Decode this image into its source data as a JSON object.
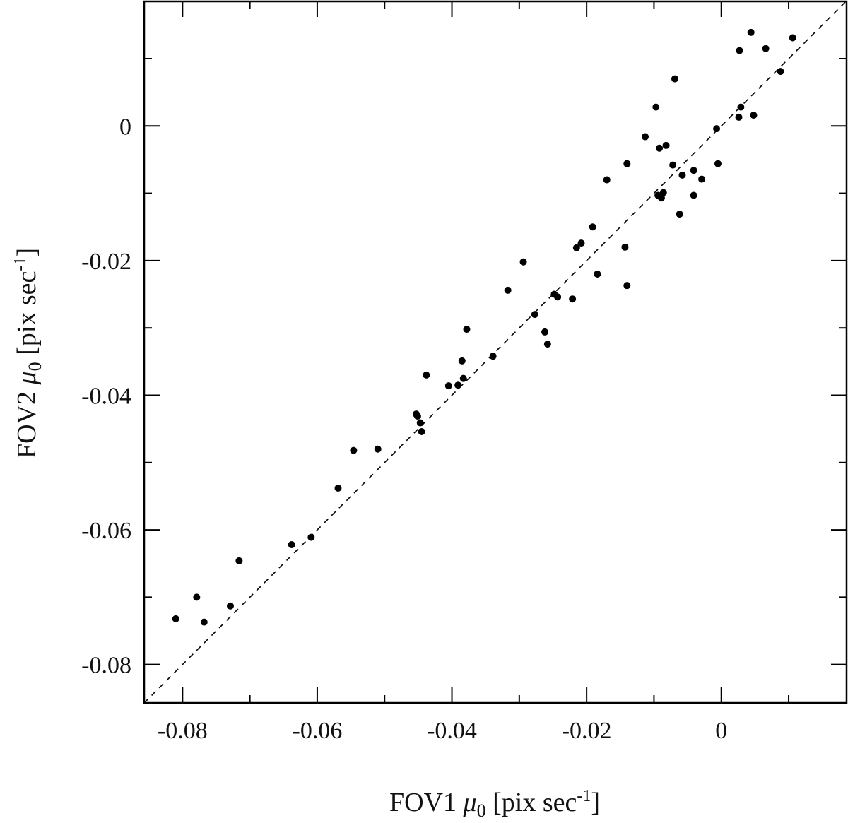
{
  "chart_data": {
    "type": "scatter",
    "title": "",
    "xlabel": {
      "prefix": "FOV1 ",
      "symbol": "μ",
      "sub": "0",
      "unit": " [pix sec",
      "exp": "-1",
      "close": "]"
    },
    "ylabel": {
      "prefix": "FOV2 ",
      "symbol": "μ",
      "sub": "0",
      "unit": " [pix sec",
      "exp": "-1",
      "close": "]"
    },
    "xlim": [
      -0.0857,
      0.0186
    ],
    "ylim": [
      -0.0857,
      0.0185
    ],
    "xticks": [
      -0.08,
      -0.06,
      -0.04,
      -0.02,
      0
    ],
    "yticks": [
      -0.08,
      -0.06,
      -0.04,
      -0.02,
      0
    ],
    "xtick_labels": [
      "-0.08",
      "-0.06",
      "-0.04",
      "-0.02",
      "0"
    ],
    "ytick_labels": [
      "-0.08",
      "-0.06",
      "-0.04",
      "-0.02",
      "0"
    ],
    "minor_tick_step": 0.01,
    "grid": false,
    "reference_line": {
      "type": "y=x",
      "style": "dashed"
    },
    "marker_color": "#000000",
    "points": [
      [
        -0.081,
        -0.0732
      ],
      [
        -0.0779,
        -0.07
      ],
      [
        -0.0768,
        -0.0737
      ],
      [
        -0.0729,
        -0.0713
      ],
      [
        -0.0716,
        -0.0646
      ],
      [
        -0.0638,
        -0.0622
      ],
      [
        -0.0609,
        -0.0611
      ],
      [
        -0.0569,
        -0.0538
      ],
      [
        -0.0546,
        -0.0482
      ],
      [
        -0.051,
        -0.048
      ],
      [
        -0.0453,
        -0.0428
      ],
      [
        -0.0451,
        -0.0431
      ],
      [
        -0.0447,
        -0.0441
      ],
      [
        -0.0445,
        -0.0454
      ],
      [
        -0.0438,
        -0.037
      ],
      [
        -0.0405,
        -0.0386
      ],
      [
        -0.0391,
        -0.0385
      ],
      [
        -0.0385,
        -0.0349
      ],
      [
        -0.0383,
        -0.0375
      ],
      [
        -0.0378,
        -0.0302
      ],
      [
        -0.0339,
        -0.0342
      ],
      [
        -0.0317,
        -0.0244
      ],
      [
        -0.0294,
        -0.0202
      ],
      [
        -0.0277,
        -0.028
      ],
      [
        -0.0262,
        -0.0306
      ],
      [
        -0.0258,
        -0.0324
      ],
      [
        -0.0248,
        -0.025
      ],
      [
        -0.0243,
        -0.0254
      ],
      [
        -0.0221,
        -0.0257
      ],
      [
        -0.0215,
        -0.0181
      ],
      [
        -0.0208,
        -0.0174
      ],
      [
        -0.0191,
        -0.015
      ],
      [
        -0.0184,
        -0.022
      ],
      [
        -0.017,
        -0.008
      ],
      [
        -0.0143,
        -0.018
      ],
      [
        -0.014,
        -0.0237
      ],
      [
        -0.014,
        -0.0056
      ],
      [
        -0.0113,
        -0.0016
      ],
      [
        -0.0097,
        0.0028
      ],
      [
        -0.0092,
        -0.0033
      ],
      [
        -0.0082,
        -0.0029
      ],
      [
        -0.0094,
        -0.0103
      ],
      [
        -0.0089,
        -0.0107
      ],
      [
        -0.0086,
        -0.0099
      ],
      [
        -0.0072,
        -0.0058
      ],
      [
        -0.0069,
        0.007
      ],
      [
        -0.0062,
        -0.0131
      ],
      [
        -0.0058,
        -0.0073
      ],
      [
        -0.0041,
        -0.0066
      ],
      [
        -0.0041,
        -0.0103
      ],
      [
        -0.0029,
        -0.0079
      ],
      [
        -0.0007,
        -0.0004
      ],
      [
        -0.0005,
        -0.0056
      ],
      [
        0.0027,
        0.0112
      ],
      [
        0.0026,
        0.0013
      ],
      [
        0.0029,
        0.0028
      ],
      [
        0.0044,
        0.0139
      ],
      [
        0.0048,
        0.0016
      ],
      [
        0.0066,
        0.0115
      ],
      [
        0.0088,
        0.0081
      ],
      [
        0.0106,
        0.0131
      ]
    ]
  }
}
